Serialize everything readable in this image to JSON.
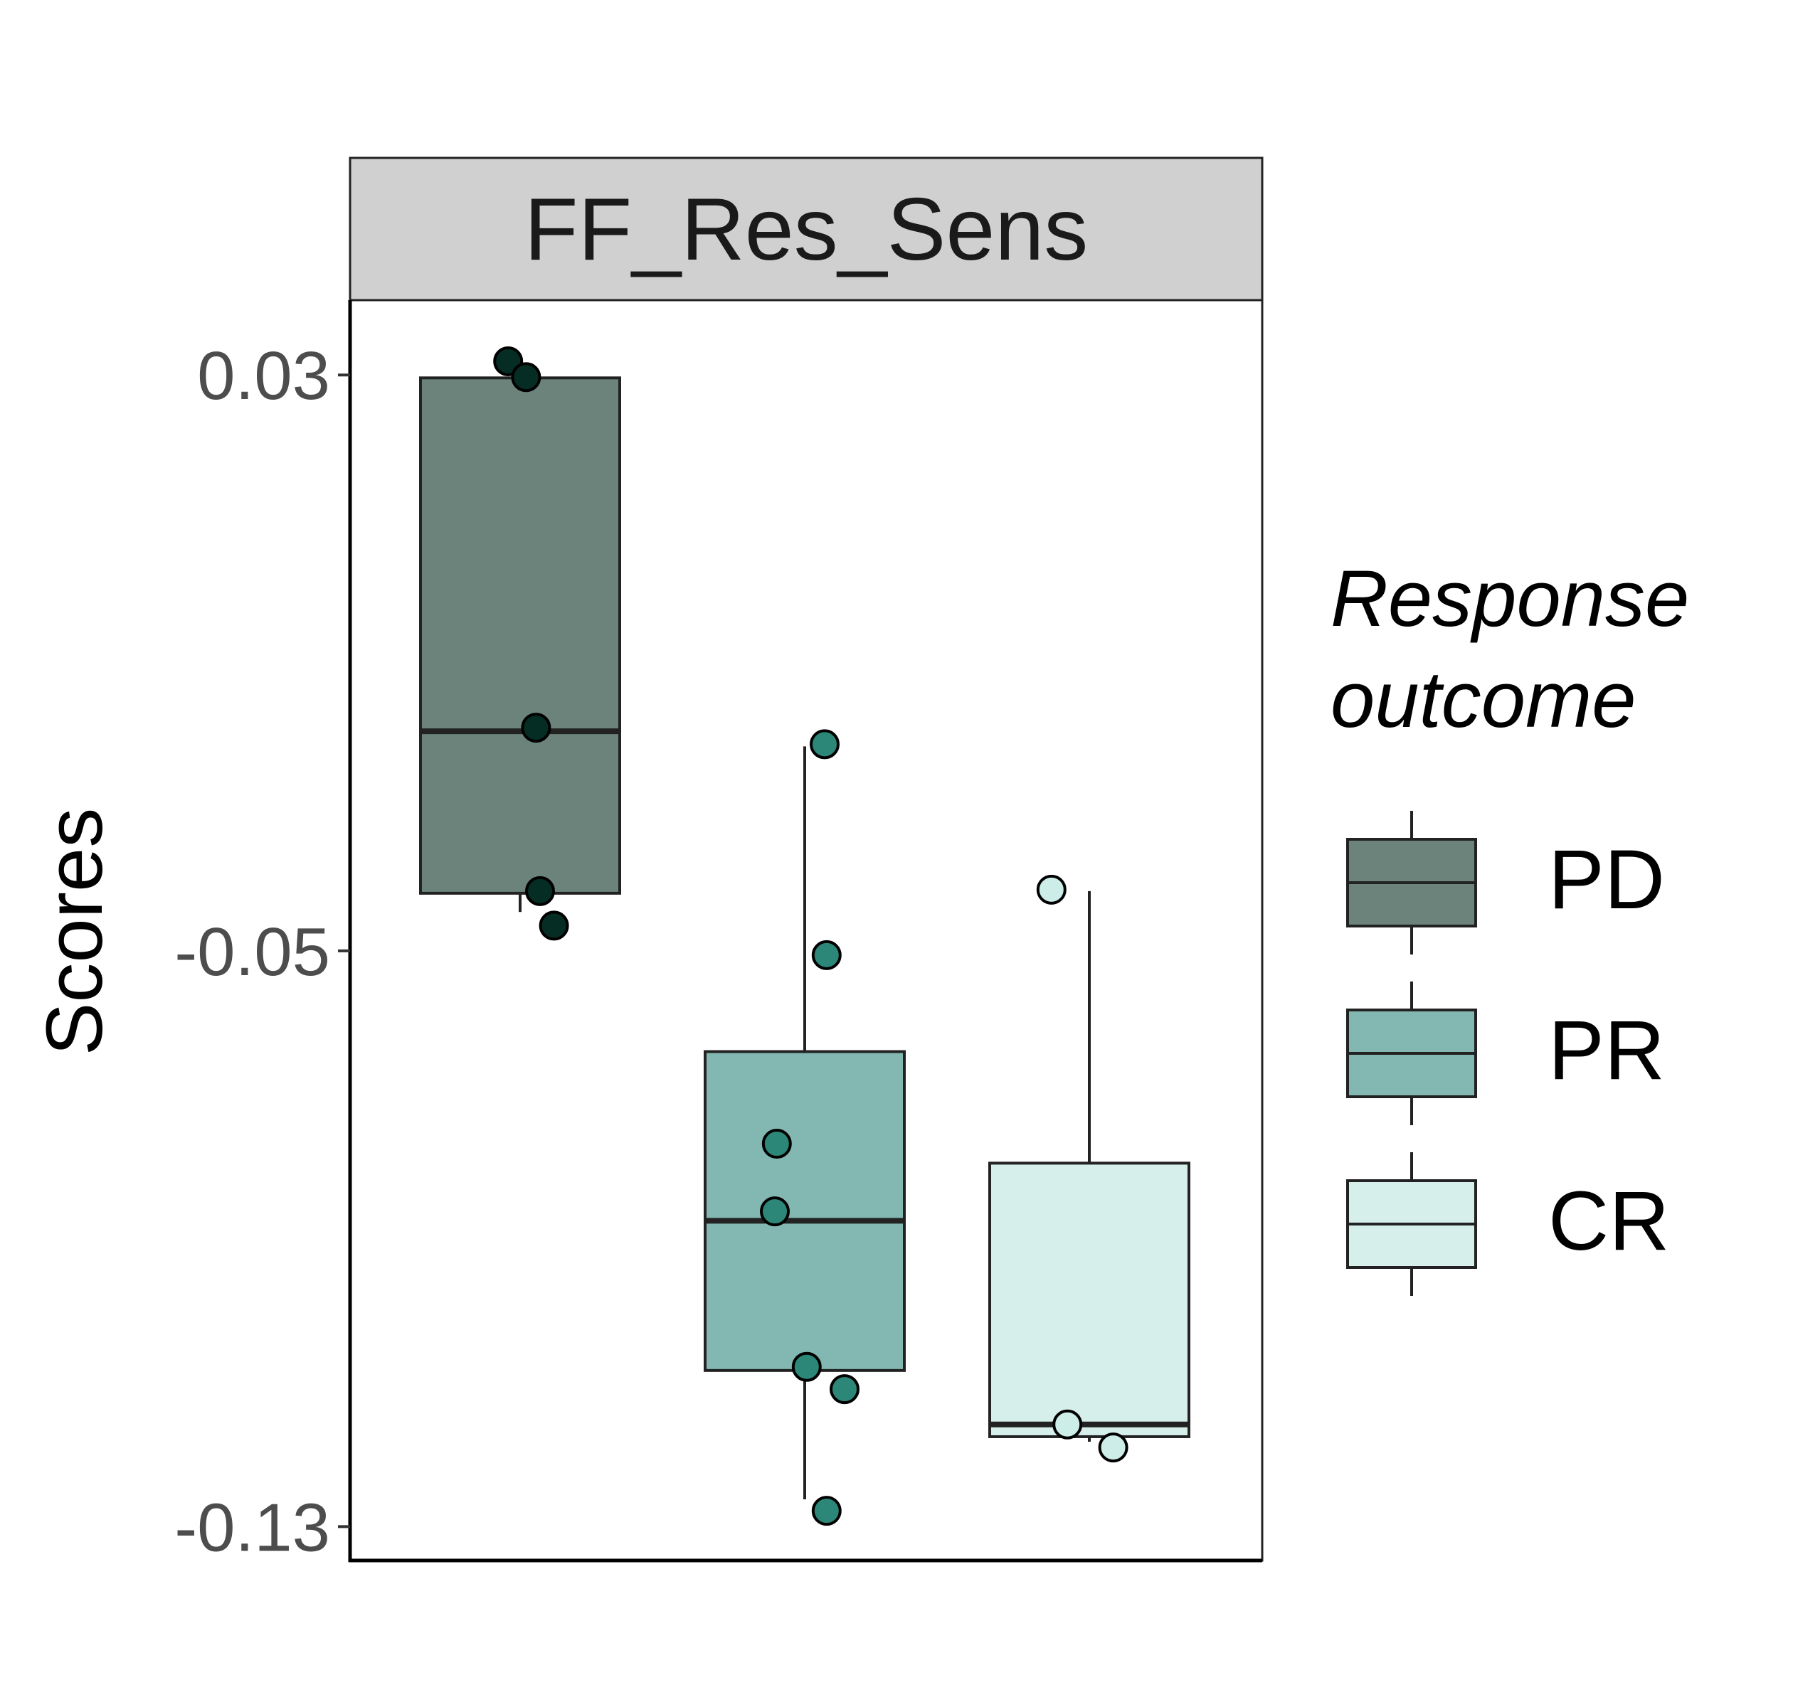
{
  "chart_data": {
    "type": "boxplot",
    "facet_title": "FF_Res_Sens",
    "ylabel": "Scores",
    "xlabel": "",
    "yticks": [
      "0.03",
      "-0.05",
      "-0.13"
    ],
    "ytick_values": [
      0.03,
      -0.05,
      -0.13
    ],
    "ylim": [
      -0.1347,
      0.0404
    ],
    "grid": false,
    "legend": {
      "title_lines": [
        "Response",
        "outcome"
      ],
      "placement": "right"
    },
    "groups": [
      {
        "name": "PD",
        "fill": "#6B837B",
        "point_color": "#062D23",
        "whisker_low": -0.0446,
        "q1": -0.042,
        "median": -0.0195,
        "q3": 0.0296,
        "whisker_high": 0.0296,
        "points": [
          {
            "offset": -0.06,
            "y": 0.0319
          },
          {
            "offset": 0.03,
            "y": 0.0297
          },
          {
            "offset": 0.08,
            "y": -0.019
          },
          {
            "offset": 0.1,
            "y": -0.0417
          },
          {
            "offset": 0.17,
            "y": -0.0465
          }
        ]
      },
      {
        "name": "PR",
        "fill": "#82B8B1",
        "point_color": "#2C8779",
        "whisker_low": -0.1262,
        "q1": -0.1083,
        "median": -0.0875,
        "q3": -0.064,
        "whisker_high": -0.0216,
        "points": [
          {
            "offset": 0.1,
            "y": -0.0213
          },
          {
            "offset": 0.11,
            "y": -0.0506
          },
          {
            "offset": -0.14,
            "y": -0.0768
          },
          {
            "offset": -0.15,
            "y": -0.0862
          },
          {
            "offset": 0.01,
            "y": -0.1078
          },
          {
            "offset": 0.2,
            "y": -0.1109
          },
          {
            "offset": 0.11,
            "y": -0.1278
          }
        ]
      },
      {
        "name": "CR",
        "fill": "#D6EFEB",
        "point_color": "#CDEEE8",
        "whisker_low": -0.1182,
        "q1": -0.1175,
        "median": -0.1158,
        "q3": -0.0795,
        "whisker_high": -0.0417,
        "points": [
          {
            "offset": -0.19,
            "y": -0.0415
          },
          {
            "offset": -0.11,
            "y": -0.1158
          },
          {
            "offset": 0.12,
            "y": -0.119
          }
        ]
      }
    ]
  }
}
